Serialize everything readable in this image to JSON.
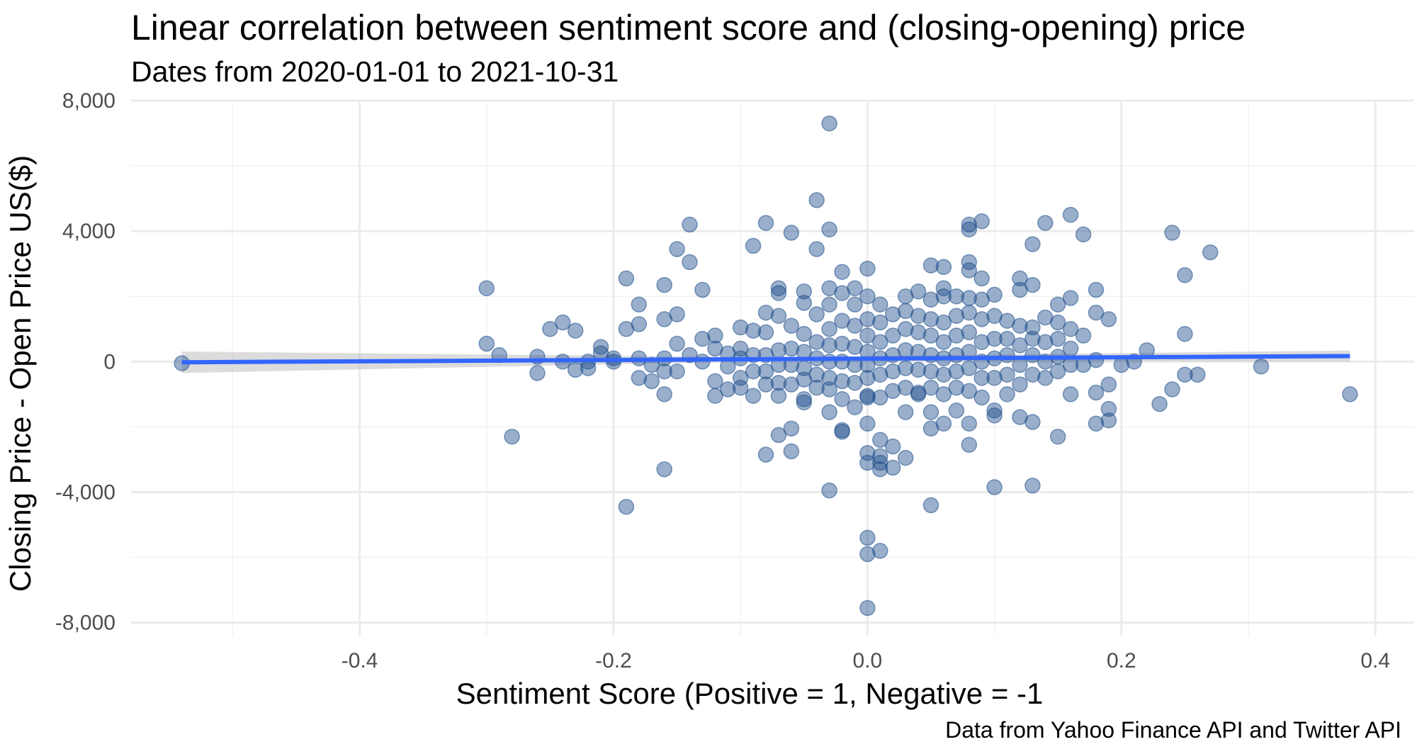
{
  "chart_data": {
    "type": "scatter",
    "title": "Linear correlation between sentiment score and (closing-opening) price",
    "subtitle": "Dates from 2020-01-01 to 2021-10-31",
    "caption": "Data from Yahoo Finance API and Twitter API",
    "xlabel": "Sentiment Score (Positive = 1, Negative = -1",
    "ylabel": "Closing Price - Open Price US($)",
    "xlim": [
      -0.58,
      0.43
    ],
    "ylim": [
      -8400,
      8000
    ],
    "x_ticks": [
      -0.4,
      -0.2,
      0.0,
      0.2,
      0.4
    ],
    "x_tick_labels": [
      "-0.4",
      "-0.2",
      "0.0",
      "0.2",
      "0.4"
    ],
    "y_ticks": [
      -8000,
      -4000,
      0,
      4000,
      8000
    ],
    "y_tick_labels": [
      "-8,000",
      "-4,000",
      "0",
      "4,000",
      "8,000"
    ],
    "grid": true,
    "point_color": "#1f4e8c",
    "point_opacity": 0.45,
    "trend": {
      "method": "linear",
      "color": "#3366ff",
      "x": [
        -0.54,
        0.38
      ],
      "y": [
        -20,
        170
      ],
      "ribbon_color": "#bfbfbf",
      "ribbon_half_width": [
        330,
        170
      ]
    },
    "points": [
      [
        -0.54,
        -50
      ],
      [
        -0.3,
        2250
      ],
      [
        -0.3,
        550
      ],
      [
        -0.29,
        200
      ],
      [
        -0.28,
        -2300
      ],
      [
        -0.26,
        150
      ],
      [
        -0.26,
        -350
      ],
      [
        -0.25,
        1000
      ],
      [
        -0.24,
        1200
      ],
      [
        -0.24,
        0
      ],
      [
        -0.23,
        950
      ],
      [
        -0.23,
        -250
      ],
      [
        -0.22,
        0
      ],
      [
        -0.22,
        -200
      ],
      [
        -0.21,
        450
      ],
      [
        -0.21,
        250
      ],
      [
        -0.2,
        100
      ],
      [
        -0.2,
        0
      ],
      [
        -0.19,
        2550
      ],
      [
        -0.19,
        1000
      ],
      [
        -0.19,
        -4450
      ],
      [
        -0.18,
        1750
      ],
      [
        -0.18,
        1150
      ],
      [
        -0.18,
        100
      ],
      [
        -0.18,
        -500
      ],
      [
        -0.17,
        -100
      ],
      [
        -0.17,
        -600
      ],
      [
        -0.16,
        2350
      ],
      [
        -0.16,
        1300
      ],
      [
        -0.16,
        100
      ],
      [
        -0.16,
        -300
      ],
      [
        -0.16,
        -1000
      ],
      [
        -0.16,
        -3300
      ],
      [
        -0.15,
        3450
      ],
      [
        -0.15,
        1450
      ],
      [
        -0.15,
        550
      ],
      [
        -0.15,
        -300
      ],
      [
        -0.14,
        4200
      ],
      [
        -0.14,
        3050
      ],
      [
        -0.14,
        200
      ],
      [
        -0.13,
        2200
      ],
      [
        -0.13,
        700
      ],
      [
        -0.13,
        0
      ],
      [
        -0.12,
        800
      ],
      [
        -0.12,
        400
      ],
      [
        -0.12,
        -600
      ],
      [
        -0.12,
        -1050
      ],
      [
        -0.11,
        250
      ],
      [
        -0.11,
        -150
      ],
      [
        -0.11,
        -850
      ],
      [
        -0.1,
        1050
      ],
      [
        -0.1,
        400
      ],
      [
        -0.1,
        100
      ],
      [
        -0.1,
        -500
      ],
      [
        -0.1,
        -800
      ],
      [
        -0.09,
        3550
      ],
      [
        -0.09,
        950
      ],
      [
        -0.09,
        200
      ],
      [
        -0.09,
        -300
      ],
      [
        -0.09,
        -1050
      ],
      [
        -0.08,
        4250
      ],
      [
        -0.08,
        1500
      ],
      [
        -0.08,
        900
      ],
      [
        -0.08,
        200
      ],
      [
        -0.08,
        -300
      ],
      [
        -0.08,
        -700
      ],
      [
        -0.08,
        -2850
      ],
      [
        -0.07,
        2250
      ],
      [
        -0.07,
        2100
      ],
      [
        -0.07,
        1400
      ],
      [
        -0.07,
        350
      ],
      [
        -0.07,
        -100
      ],
      [
        -0.07,
        -650
      ],
      [
        -0.07,
        -1050
      ],
      [
        -0.07,
        -2250
      ],
      [
        -0.06,
        3950
      ],
      [
        -0.06,
        1100
      ],
      [
        -0.06,
        400
      ],
      [
        -0.06,
        -100
      ],
      [
        -0.06,
        -700
      ],
      [
        -0.06,
        -2050
      ],
      [
        -0.06,
        -2750
      ],
      [
        -0.05,
        2150
      ],
      [
        -0.05,
        1800
      ],
      [
        -0.05,
        850
      ],
      [
        -0.05,
        300
      ],
      [
        -0.05,
        -200
      ],
      [
        -0.05,
        -550
      ],
      [
        -0.05,
        -1250
      ],
      [
        -0.05,
        -1150
      ],
      [
        -0.04,
        4950
      ],
      [
        -0.04,
        3450
      ],
      [
        -0.04,
        1450
      ],
      [
        -0.04,
        600
      ],
      [
        -0.04,
        100
      ],
      [
        -0.04,
        -400
      ],
      [
        -0.04,
        -800
      ],
      [
        -0.03,
        7300
      ],
      [
        -0.03,
        4050
      ],
      [
        -0.03,
        2250
      ],
      [
        -0.03,
        1750
      ],
      [
        -0.03,
        1000
      ],
      [
        -0.03,
        500
      ],
      [
        -0.03,
        0
      ],
      [
        -0.03,
        -500
      ],
      [
        -0.03,
        -850
      ],
      [
        -0.03,
        -1550
      ],
      [
        -0.03,
        -3950
      ],
      [
        -0.02,
        2750
      ],
      [
        -0.02,
        2100
      ],
      [
        -0.02,
        1250
      ],
      [
        -0.02,
        550
      ],
      [
        -0.02,
        0
      ],
      [
        -0.02,
        -600
      ],
      [
        -0.02,
        -1150
      ],
      [
        -0.02,
        -2100
      ],
      [
        -0.02,
        -2150
      ],
      [
        -0.01,
        2250
      ],
      [
        -0.01,
        1750
      ],
      [
        -0.01,
        1100
      ],
      [
        -0.01,
        450
      ],
      [
        -0.01,
        -100
      ],
      [
        -0.01,
        -650
      ],
      [
        -0.01,
        -1400
      ],
      [
        0.0,
        2850
      ],
      [
        0.0,
        2000
      ],
      [
        0.0,
        1300
      ],
      [
        0.0,
        800
      ],
      [
        0.0,
        300
      ],
      [
        0.0,
        -100
      ],
      [
        0.0,
        -500
      ],
      [
        0.0,
        -1050
      ],
      [
        0.0,
        -1100
      ],
      [
        0.0,
        -1900
      ],
      [
        0.0,
        -2800
      ],
      [
        0.0,
        -3100
      ],
      [
        0.0,
        -5400
      ],
      [
        0.0,
        -5900
      ],
      [
        0.0,
        -7550
      ],
      [
        0.01,
        1750
      ],
      [
        0.01,
        1200
      ],
      [
        0.01,
        600
      ],
      [
        0.01,
        100
      ],
      [
        0.01,
        -400
      ],
      [
        0.01,
        -1100
      ],
      [
        0.01,
        -2400
      ],
      [
        0.01,
        -2900
      ],
      [
        0.01,
        -3100
      ],
      [
        0.01,
        -3300
      ],
      [
        0.01,
        -5800
      ],
      [
        0.02,
        1450
      ],
      [
        0.02,
        800
      ],
      [
        0.02,
        200
      ],
      [
        0.02,
        -300
      ],
      [
        0.02,
        -900
      ],
      [
        0.02,
        -2600
      ],
      [
        0.02,
        -3250
      ],
      [
        0.03,
        2000
      ],
      [
        0.03,
        1550
      ],
      [
        0.03,
        1000
      ],
      [
        0.03,
        350
      ],
      [
        0.03,
        -200
      ],
      [
        0.03,
        -800
      ],
      [
        0.03,
        -1550
      ],
      [
        0.03,
        -2950
      ],
      [
        0.04,
        2150
      ],
      [
        0.04,
        1400
      ],
      [
        0.04,
        900
      ],
      [
        0.04,
        300
      ],
      [
        0.04,
        -250
      ],
      [
        0.04,
        -950
      ],
      [
        0.04,
        -1000
      ],
      [
        0.05,
        2950
      ],
      [
        0.05,
        1900
      ],
      [
        0.05,
        1300
      ],
      [
        0.05,
        800
      ],
      [
        0.05,
        200
      ],
      [
        0.05,
        -300
      ],
      [
        0.05,
        -800
      ],
      [
        0.05,
        -1550
      ],
      [
        0.05,
        -2050
      ],
      [
        0.05,
        -4400
      ],
      [
        0.06,
        2900
      ],
      [
        0.06,
        2250
      ],
      [
        0.06,
        2000
      ],
      [
        0.06,
        1200
      ],
      [
        0.06,
        600
      ],
      [
        0.06,
        100
      ],
      [
        0.06,
        -400
      ],
      [
        0.06,
        -1000
      ],
      [
        0.06,
        -1900
      ],
      [
        0.07,
        2000
      ],
      [
        0.07,
        1400
      ],
      [
        0.07,
        800
      ],
      [
        0.07,
        200
      ],
      [
        0.07,
        -300
      ],
      [
        0.07,
        -800
      ],
      [
        0.07,
        -1500
      ],
      [
        0.08,
        4200
      ],
      [
        0.08,
        4050
      ],
      [
        0.08,
        3050
      ],
      [
        0.08,
        2800
      ],
      [
        0.08,
        1950
      ],
      [
        0.08,
        1500
      ],
      [
        0.08,
        900
      ],
      [
        0.08,
        300
      ],
      [
        0.08,
        -200
      ],
      [
        0.08,
        -900
      ],
      [
        0.08,
        -1900
      ],
      [
        0.08,
        -2550
      ],
      [
        0.09,
        4300
      ],
      [
        0.09,
        2550
      ],
      [
        0.09,
        1900
      ],
      [
        0.09,
        1300
      ],
      [
        0.09,
        600
      ],
      [
        0.09,
        0
      ],
      [
        0.09,
        -500
      ],
      [
        0.09,
        -1100
      ],
      [
        0.1,
        2050
      ],
      [
        0.1,
        1400
      ],
      [
        0.1,
        700
      ],
      [
        0.1,
        100
      ],
      [
        0.1,
        -500
      ],
      [
        0.1,
        -1500
      ],
      [
        0.1,
        -1650
      ],
      [
        0.1,
        -3850
      ],
      [
        0.11,
        1250
      ],
      [
        0.11,
        700
      ],
      [
        0.11,
        200
      ],
      [
        0.11,
        -400
      ],
      [
        0.11,
        -1000
      ],
      [
        0.12,
        2550
      ],
      [
        0.12,
        2200
      ],
      [
        0.12,
        1100
      ],
      [
        0.12,
        500
      ],
      [
        0.12,
        -100
      ],
      [
        0.12,
        -700
      ],
      [
        0.12,
        -1700
      ],
      [
        0.13,
        3600
      ],
      [
        0.13,
        2350
      ],
      [
        0.13,
        1050
      ],
      [
        0.13,
        700
      ],
      [
        0.13,
        200
      ],
      [
        0.13,
        -400
      ],
      [
        0.13,
        -1850
      ],
      [
        0.13,
        -3800
      ],
      [
        0.14,
        4250
      ],
      [
        0.14,
        1350
      ],
      [
        0.14,
        600
      ],
      [
        0.14,
        0
      ],
      [
        0.14,
        -500
      ],
      [
        0.15,
        1750
      ],
      [
        0.15,
        1200
      ],
      [
        0.15,
        700
      ],
      [
        0.15,
        150
      ],
      [
        0.15,
        -300
      ],
      [
        0.15,
        -2300
      ],
      [
        0.16,
        4500
      ],
      [
        0.16,
        1950
      ],
      [
        0.16,
        1000
      ],
      [
        0.16,
        400
      ],
      [
        0.16,
        -100
      ],
      [
        0.16,
        -1000
      ],
      [
        0.17,
        3900
      ],
      [
        0.17,
        800
      ],
      [
        0.17,
        -100
      ],
      [
        0.18,
        2200
      ],
      [
        0.18,
        1500
      ],
      [
        0.18,
        50
      ],
      [
        0.18,
        -950
      ],
      [
        0.18,
        -1900
      ],
      [
        0.19,
        1300
      ],
      [
        0.19,
        -700
      ],
      [
        0.19,
        -1450
      ],
      [
        0.19,
        -1800
      ],
      [
        0.2,
        -100
      ],
      [
        0.21,
        0
      ],
      [
        0.22,
        350
      ],
      [
        0.23,
        -1300
      ],
      [
        0.24,
        3950
      ],
      [
        0.24,
        -850
      ],
      [
        0.25,
        2650
      ],
      [
        0.25,
        850
      ],
      [
        0.25,
        -400
      ],
      [
        0.26,
        -400
      ],
      [
        0.27,
        3350
      ],
      [
        0.31,
        -150
      ],
      [
        0.38,
        -1000
      ]
    ]
  }
}
